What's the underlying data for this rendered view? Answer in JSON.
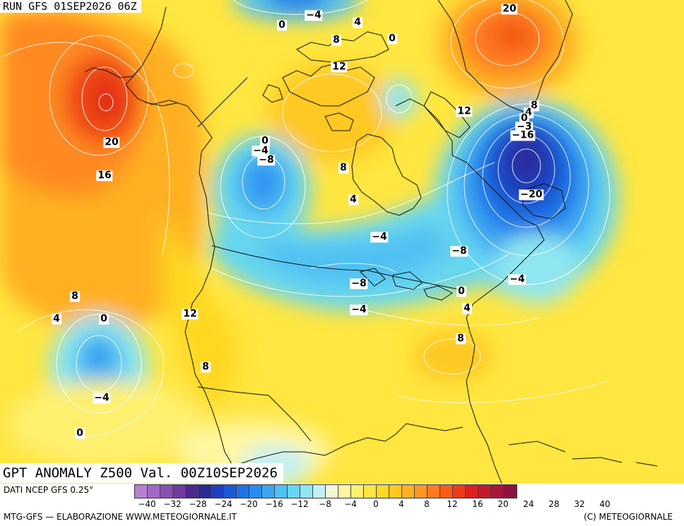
{
  "run_title": "RUN GFS 01SEP2026 06Z",
  "main_title": "GPT ANOMALY Z500 Val. 00Z10SEP2026",
  "footer": {
    "source": "DATI NCEP GFS 0.25°",
    "credit_left": "MTG-GFS — ELABORAZIONE WWW.METEOGIORNALE.IT",
    "credit_right": "(C) METEOGIORNALE"
  },
  "colorbar": {
    "colors": [
      "#b97fd0",
      "#a368c4",
      "#8a4fb4",
      "#703a9f",
      "#4a2a8c",
      "#2a2a9a",
      "#1f3fbf",
      "#1b58d8",
      "#1e72e8",
      "#2a8cf0",
      "#3aa6f2",
      "#4fc0f2",
      "#66d6f0",
      "#8fe6f0",
      "#c4f1f4",
      "#f2f9d8",
      "#fff6a0",
      "#fff070",
      "#ffe640",
      "#ffd820",
      "#ffc820",
      "#ffb020",
      "#ff9820",
      "#ff7a20",
      "#ff5a18",
      "#f23a18",
      "#dc2020",
      "#c41a2a",
      "#a8163a",
      "#8e1440"
    ],
    "tick_labels": [
      "−40",
      "−32",
      "−28",
      "−24",
      "−20",
      "−16",
      "−12",
      "−8",
      "−4",
      "0",
      "4",
      "8",
      "12",
      "16",
      "20",
      "24",
      "28",
      "32",
      "40"
    ]
  },
  "contour_labels": [
    "−4",
    "0",
    "4",
    "20",
    "8",
    "0",
    "12",
    "12",
    "8",
    "4",
    "0",
    "−3",
    "−16",
    "20",
    "16",
    "0",
    "−4",
    "−8",
    "8",
    "4",
    "−20",
    "−4",
    "−8",
    "−8",
    "−4",
    "0",
    "−4",
    "4",
    "8",
    "4",
    "0",
    "12",
    "8",
    "8",
    "−4",
    "0"
  ]
}
